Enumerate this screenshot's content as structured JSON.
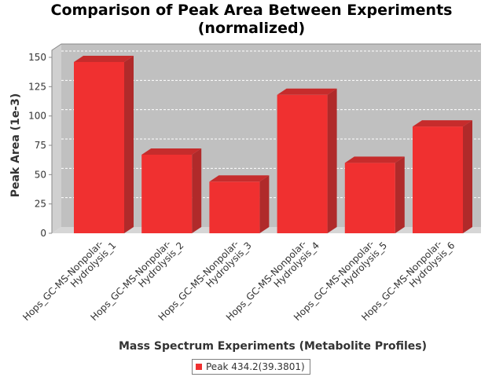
{
  "title_lines": [
    "Comparison of Peak Area Between Experiments",
    "(normalized)"
  ],
  "colors": {
    "bar_front": "#f03030",
    "bar_top": "#c62c2c",
    "bar_side": "#b02a2a",
    "plot_back": "#c0c0c0",
    "plot_wall": "#d0d0d0",
    "plot_floor": "#d6d6d6",
    "gridline": "#ffffff",
    "text": "#333333",
    "title": "#000000"
  },
  "chart_data": {
    "type": "bar",
    "title": "Comparison of Peak Area Between Experiments\n(normalized)",
    "xlabel": "Mass Spectrum Experiments (Metabolite Profiles)",
    "ylabel": "Peak Area (1e-3)",
    "categories": [
      [
        "Hops_GC-MS-Nonpolar-",
        "Hydrolysis_1"
      ],
      [
        "Hops_GC-MS-Nonpolar-",
        "Hydrolysis_2"
      ],
      [
        "Hops_GC-MS-Nonpolar-",
        "Hydrolysis_3"
      ],
      [
        "Hops_GC-MS-Nonpolar-",
        "Hydrolysis_4"
      ],
      [
        "Hops_GC-MS-Nonpolar-",
        "Hydrolysis_5"
      ],
      [
        "Hops_GC-MS-Nonpolar-",
        "Hydrolysis_6"
      ]
    ],
    "series": [
      {
        "name": "Peak 434.2(39.3801)",
        "values": [
          146,
          67,
          44,
          118,
          60,
          91
        ]
      }
    ],
    "ylim": [
      0,
      150
    ],
    "yticks": [
      0,
      25,
      50,
      75,
      100,
      125,
      150
    ],
    "grid": true,
    "legend": "bottom-center",
    "style": "3d"
  }
}
